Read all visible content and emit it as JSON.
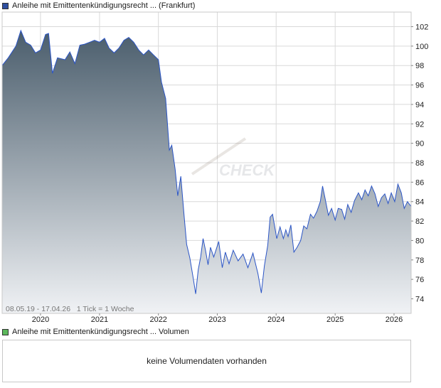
{
  "legend_price": {
    "label": "Anleihe mit Emittentenkündigungsrecht ... (Frankfurt)",
    "color": "#2e4fa0"
  },
  "legend_volume": {
    "label": "Anleihe mit Emittentenkündigungsrecht ... Volumen",
    "color": "#5cb85c"
  },
  "range_label": "08.05.19 - 17.04.26   1 Tick = 1 Woche",
  "watermark": "CHECK",
  "volume_panel": {
    "message": "keine Volumendaten vorhanden"
  },
  "colors": {
    "line": "#2b55c6",
    "fill_top": "#4a5d6c",
    "fill_bottom": "#f0f2f5",
    "grid": "#d9d9d9",
    "frame": "#c8c8c8"
  },
  "chart_data": {
    "type": "area",
    "x_ticks": [
      "2020",
      "2021",
      "2022",
      "2023",
      "2024",
      "2025",
      "2026"
    ],
    "y_ticks": [
      74,
      76,
      78,
      80,
      82,
      84,
      86,
      88,
      90,
      92,
      94,
      96,
      98,
      100,
      102
    ],
    "xlim": [
      "2019-05-08",
      "2026-04-17"
    ],
    "ylim": [
      72.5,
      103.5
    ],
    "grid": true,
    "series": [
      {
        "points": [
          [
            "2019-05-08",
            98.0
          ],
          [
            "2019-06-15",
            98.8
          ],
          [
            "2019-08-01",
            100.0
          ],
          [
            "2019-09-01",
            101.6
          ],
          [
            "2019-10-01",
            100.4
          ],
          [
            "2019-11-01",
            100.1
          ],
          [
            "2019-12-01",
            99.3
          ],
          [
            "2020-01-01",
            99.6
          ],
          [
            "2020-02-01",
            101.2
          ],
          [
            "2020-02-20",
            101.3
          ],
          [
            "2020-03-15",
            97.2
          ],
          [
            "2020-04-15",
            98.8
          ],
          [
            "2020-06-01",
            98.6
          ],
          [
            "2020-07-01",
            99.4
          ],
          [
            "2020-08-01",
            98.2
          ],
          [
            "2020-09-01",
            100.1
          ],
          [
            "2020-10-01",
            100.2
          ],
          [
            "2020-12-01",
            100.6
          ],
          [
            "2021-01-01",
            100.4
          ],
          [
            "2021-02-01",
            100.8
          ],
          [
            "2021-03-01",
            99.8
          ],
          [
            "2021-04-01",
            99.3
          ],
          [
            "2021-05-01",
            99.8
          ],
          [
            "2021-06-01",
            100.6
          ],
          [
            "2021-07-01",
            100.9
          ],
          [
            "2021-08-01",
            100.4
          ],
          [
            "2021-09-01",
            99.6
          ],
          [
            "2021-10-01",
            99.1
          ],
          [
            "2021-11-01",
            99.6
          ],
          [
            "2021-12-01",
            99.1
          ],
          [
            "2022-01-01",
            98.6
          ],
          [
            "2022-01-20",
            96.3
          ],
          [
            "2022-02-15",
            94.6
          ],
          [
            "2022-03-10",
            89.3
          ],
          [
            "2022-03-25",
            89.8
          ],
          [
            "2022-04-15",
            87.3
          ],
          [
            "2022-05-01",
            84.6
          ],
          [
            "2022-05-20",
            86.6
          ],
          [
            "2022-06-10",
            82.4
          ],
          [
            "2022-06-25",
            79.6
          ],
          [
            "2022-07-15",
            78.2
          ],
          [
            "2022-08-05",
            76.1
          ],
          [
            "2022-08-20",
            74.5
          ],
          [
            "2022-09-05",
            77.0
          ],
          [
            "2022-09-20",
            78.3
          ],
          [
            "2022-10-05",
            80.2
          ],
          [
            "2022-10-20",
            79.0
          ],
          [
            "2022-11-05",
            77.5
          ],
          [
            "2022-11-20",
            79.3
          ],
          [
            "2022-12-10",
            78.3
          ],
          [
            "2023-01-10",
            79.9
          ],
          [
            "2023-02-01",
            77.2
          ],
          [
            "2023-02-20",
            78.8
          ],
          [
            "2023-03-15",
            77.6
          ],
          [
            "2023-04-10",
            79.0
          ],
          [
            "2023-05-10",
            77.9
          ],
          [
            "2023-06-10",
            78.6
          ],
          [
            "2023-07-10",
            77.2
          ],
          [
            "2023-08-10",
            78.7
          ],
          [
            "2023-09-10",
            76.6
          ],
          [
            "2023-10-01",
            74.6
          ],
          [
            "2023-10-20",
            77.4
          ],
          [
            "2023-11-10",
            79.5
          ],
          [
            "2023-11-25",
            82.4
          ],
          [
            "2023-12-10",
            82.7
          ],
          [
            "2024-01-05",
            80.2
          ],
          [
            "2024-01-25",
            81.4
          ],
          [
            "2024-02-15",
            80.2
          ],
          [
            "2024-03-01",
            81.1
          ],
          [
            "2024-03-15",
            80.4
          ],
          [
            "2024-04-01",
            81.6
          ],
          [
            "2024-04-20",
            78.8
          ],
          [
            "2024-05-10",
            79.3
          ],
          [
            "2024-06-01",
            80.0
          ],
          [
            "2024-06-20",
            81.5
          ],
          [
            "2024-07-10",
            81.2
          ],
          [
            "2024-08-01",
            82.7
          ],
          [
            "2024-08-20",
            82.3
          ],
          [
            "2024-09-10",
            83.0
          ],
          [
            "2024-10-01",
            84.0
          ],
          [
            "2024-10-15",
            85.6
          ],
          [
            "2024-11-01",
            84.2
          ],
          [
            "2024-11-20",
            82.6
          ],
          [
            "2024-12-10",
            83.3
          ],
          [
            "2025-01-01",
            82.1
          ],
          [
            "2025-01-20",
            83.3
          ],
          [
            "2025-02-10",
            83.2
          ],
          [
            "2025-03-01",
            82.2
          ],
          [
            "2025-03-20",
            83.7
          ],
          [
            "2025-04-10",
            82.9
          ],
          [
            "2025-05-01",
            84.1
          ],
          [
            "2025-05-25",
            84.9
          ],
          [
            "2025-06-15",
            84.2
          ],
          [
            "2025-07-05",
            85.2
          ],
          [
            "2025-07-25",
            84.6
          ],
          [
            "2025-08-15",
            85.6
          ],
          [
            "2025-09-05",
            84.8
          ],
          [
            "2025-09-25",
            83.5
          ],
          [
            "2025-10-15",
            84.4
          ],
          [
            "2025-11-05",
            84.8
          ],
          [
            "2025-11-25",
            83.8
          ],
          [
            "2025-12-15",
            84.9
          ],
          [
            "2026-01-05",
            84.0
          ],
          [
            "2026-01-25",
            85.8
          ],
          [
            "2026-02-15",
            84.9
          ],
          [
            "2026-03-05",
            83.3
          ],
          [
            "2026-03-25",
            84.0
          ],
          [
            "2026-04-17",
            83.5
          ]
        ]
      }
    ]
  }
}
